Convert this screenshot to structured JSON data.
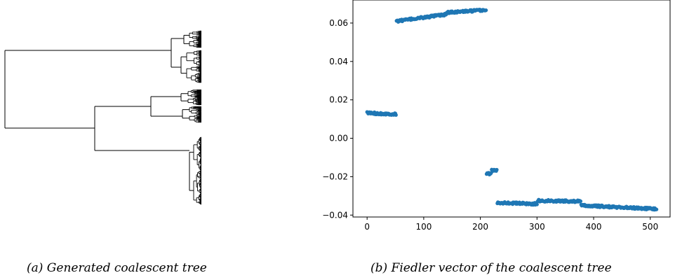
{
  "captions": {
    "a": "(a) Generated coalescent tree",
    "b": "(b) Fiedler vector of the coalescent tree"
  },
  "chart_data": [
    {
      "type": "dendrogram",
      "panel": "a",
      "leaf_count": 512,
      "title": "",
      "axes_visible": false
    },
    {
      "type": "scatter",
      "panel": "b",
      "title": "",
      "xlabel": "",
      "ylabel": "",
      "xlim": [
        -25,
        535
      ],
      "ylim": [
        -0.041,
        0.072
      ],
      "xticks": [
        0,
        100,
        200,
        300,
        400,
        500
      ],
      "xtick_labels": [
        "0",
        "100",
        "200",
        "300",
        "400",
        "500"
      ],
      "yticks": [
        -0.04,
        -0.02,
        0.0,
        0.02,
        0.04,
        0.06
      ],
      "ytick_labels": [
        "−0.04",
        "−0.02",
        "0.00",
        "0.02",
        "0.04",
        "0.06"
      ],
      "grid": false,
      "color": "#1f77b4",
      "series": [
        {
          "segments": [
            {
              "x": [
                0,
                51
              ],
              "y": [
                0.0132,
                0.0125
              ]
            },
            {
              "x": [
                52,
                140
              ],
              "y": [
                0.061,
                0.0645
              ]
            },
            {
              "x": [
                141,
                210
              ],
              "y": [
                0.0655,
                0.0668
              ]
            },
            {
              "x": [
                211,
                219
              ],
              "y": [
                -0.0185,
                -0.0183
              ]
            },
            {
              "x": [
                220,
                229
              ],
              "y": [
                -0.0168,
                -0.0168
              ]
            },
            {
              "x": [
                230,
                300
              ],
              "y": [
                -0.0335,
                -0.0342
              ]
            },
            {
              "x": [
                301,
                377
              ],
              "y": [
                -0.0325,
                -0.0328
              ]
            },
            {
              "x": [
                378,
                511
              ],
              "y": [
                -0.035,
                -0.0368
              ]
            }
          ]
        }
      ]
    }
  ]
}
